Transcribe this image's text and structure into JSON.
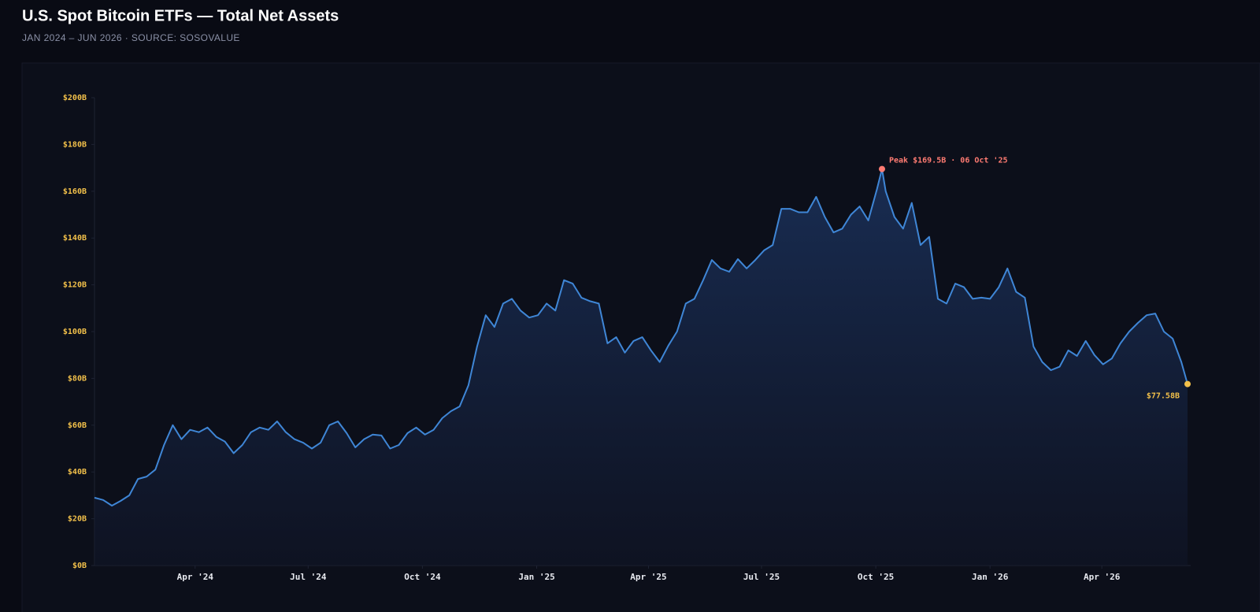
{
  "chart_data": {
    "type": "area",
    "title": "U.S. Spot Bitcoin ETFs — Total Net Assets",
    "subtitle": "JAN 2024 – JUN 2026 · SOURCE: SOSOVALUE",
    "color": "#3f86d6",
    "grid": false,
    "x": [
      "2024-01-11",
      "2024-01-18",
      "2024-01-25",
      "2024-02-01",
      "2024-02-08",
      "2024-02-15",
      "2024-02-22",
      "2024-02-29",
      "2024-03-07",
      "2024-03-14",
      "2024-03-21",
      "2024-03-28",
      "2024-04-04",
      "2024-04-11",
      "2024-04-18",
      "2024-04-25",
      "2024-05-02",
      "2024-05-09",
      "2024-05-16",
      "2024-05-23",
      "2024-05-30",
      "2024-06-06",
      "2024-06-13",
      "2024-06-20",
      "2024-06-27",
      "2024-07-04",
      "2024-07-11",
      "2024-07-18",
      "2024-07-25",
      "2024-08-01",
      "2024-08-08",
      "2024-08-15",
      "2024-08-22",
      "2024-08-29",
      "2024-09-05",
      "2024-09-12",
      "2024-09-19",
      "2024-09-26",
      "2024-10-03",
      "2024-10-10",
      "2024-10-17",
      "2024-10-24",
      "2024-10-31",
      "2024-11-07",
      "2024-11-14",
      "2024-11-21",
      "2024-11-28",
      "2024-12-05",
      "2024-12-12",
      "2024-12-19",
      "2024-12-26",
      "2025-01-02",
      "2025-01-09",
      "2025-01-16",
      "2025-01-23",
      "2025-01-30",
      "2025-02-06",
      "2025-02-13",
      "2025-02-20",
      "2025-02-27",
      "2025-03-06",
      "2025-03-13",
      "2025-03-20",
      "2025-03-27",
      "2025-04-03",
      "2025-04-10",
      "2025-04-17",
      "2025-04-24",
      "2025-05-01",
      "2025-05-08",
      "2025-05-15",
      "2025-05-22",
      "2025-05-29",
      "2025-06-05",
      "2025-06-12",
      "2025-06-19",
      "2025-06-26",
      "2025-07-03",
      "2025-07-10",
      "2025-07-17",
      "2025-07-24",
      "2025-07-31",
      "2025-08-07",
      "2025-08-14",
      "2025-08-21",
      "2025-08-28",
      "2025-09-04",
      "2025-09-11",
      "2025-09-18",
      "2025-09-25",
      "2025-10-02",
      "2025-10-06",
      "2025-10-09",
      "2025-10-16",
      "2025-10-23",
      "2025-10-30",
      "2025-11-06",
      "2025-11-13",
      "2025-11-20",
      "2025-11-27",
      "2025-12-04",
      "2025-12-11",
      "2025-12-18",
      "2025-12-25",
      "2026-01-01",
      "2026-01-08",
      "2026-01-15",
      "2026-01-22",
      "2026-01-29",
      "2026-02-05",
      "2026-02-12",
      "2026-02-19",
      "2026-02-26",
      "2026-03-05",
      "2026-03-12",
      "2026-03-19",
      "2026-03-26",
      "2026-04-02",
      "2026-04-09",
      "2026-04-16",
      "2026-04-23",
      "2026-04-30",
      "2026-05-07",
      "2026-05-14",
      "2026-05-21",
      "2026-05-28",
      "2026-06-04",
      "2026-06-09"
    ],
    "values": [
      29,
      28,
      25.6,
      27.6,
      30,
      37,
      38,
      41,
      51.5,
      60,
      54,
      58,
      57,
      59,
      55,
      53,
      48,
      51.5,
      57,
      59,
      58,
      61.6,
      57,
      54,
      52.5,
      50,
      52.5,
      60,
      61.6,
      56.6,
      50.5,
      54,
      56,
      55.6,
      50,
      51.5,
      56.6,
      59,
      56,
      58,
      63,
      66,
      68,
      77,
      93.6,
      107,
      102,
      112,
      114,
      109,
      106,
      107,
      112,
      109,
      122,
      120.5,
      114.5,
      113,
      112,
      95,
      97.6,
      91,
      96,
      97.6,
      92,
      87,
      94,
      100,
      112,
      114,
      122,
      130.6,
      127,
      125.6,
      131,
      127,
      130.6,
      134.7,
      137,
      152.5,
      152.5,
      151,
      151,
      157.6,
      149,
      142.4,
      144,
      150,
      153.5,
      147.5,
      161,
      169.5,
      160,
      149,
      144,
      155,
      137,
      140.5,
      114,
      112,
      120.5,
      119,
      114,
      114.5,
      114,
      119,
      127,
      117,
      114.5,
      93.6,
      87,
      83.5,
      85,
      92,
      89.6,
      96,
      90,
      86,
      88.5,
      95,
      100,
      103.7,
      107,
      107.7,
      100,
      97,
      87,
      77.58
    ],
    "xlim": [
      "2024-01-11",
      "2026-06-09"
    ],
    "xticks": [
      {
        "value": "2024-04-01",
        "label": "Apr '24"
      },
      {
        "value": "2024-07-01",
        "label": "Jul '24"
      },
      {
        "value": "2024-10-01",
        "label": "Oct '24"
      },
      {
        "value": "2025-01-01",
        "label": "Jan '25"
      },
      {
        "value": "2025-04-01",
        "label": "Apr '25"
      },
      {
        "value": "2025-07-01",
        "label": "Jul '25"
      },
      {
        "value": "2025-10-01",
        "label": "Oct '25"
      },
      {
        "value": "2026-01-01",
        "label": "Jan '26"
      },
      {
        "value": "2026-04-01",
        "label": "Apr '26"
      }
    ],
    "ylim": [
      0,
      200
    ],
    "yticks": [
      {
        "value": 0,
        "label": "$0B"
      },
      {
        "value": 20,
        "label": "$20B"
      },
      {
        "value": 40,
        "label": "$40B"
      },
      {
        "value": 60,
        "label": "$60B"
      },
      {
        "value": 80,
        "label": "$80B"
      },
      {
        "value": 100,
        "label": "$100B"
      },
      {
        "value": 120,
        "label": "$120B"
      },
      {
        "value": 140,
        "label": "$140B"
      },
      {
        "value": 160,
        "label": "$160B"
      },
      {
        "value": 180,
        "label": "$180B"
      },
      {
        "value": 200,
        "label": "$200B"
      }
    ],
    "peak_label": "Peak $169.5B · 06 Oct '25",
    "last_label": "$77.58B"
  }
}
